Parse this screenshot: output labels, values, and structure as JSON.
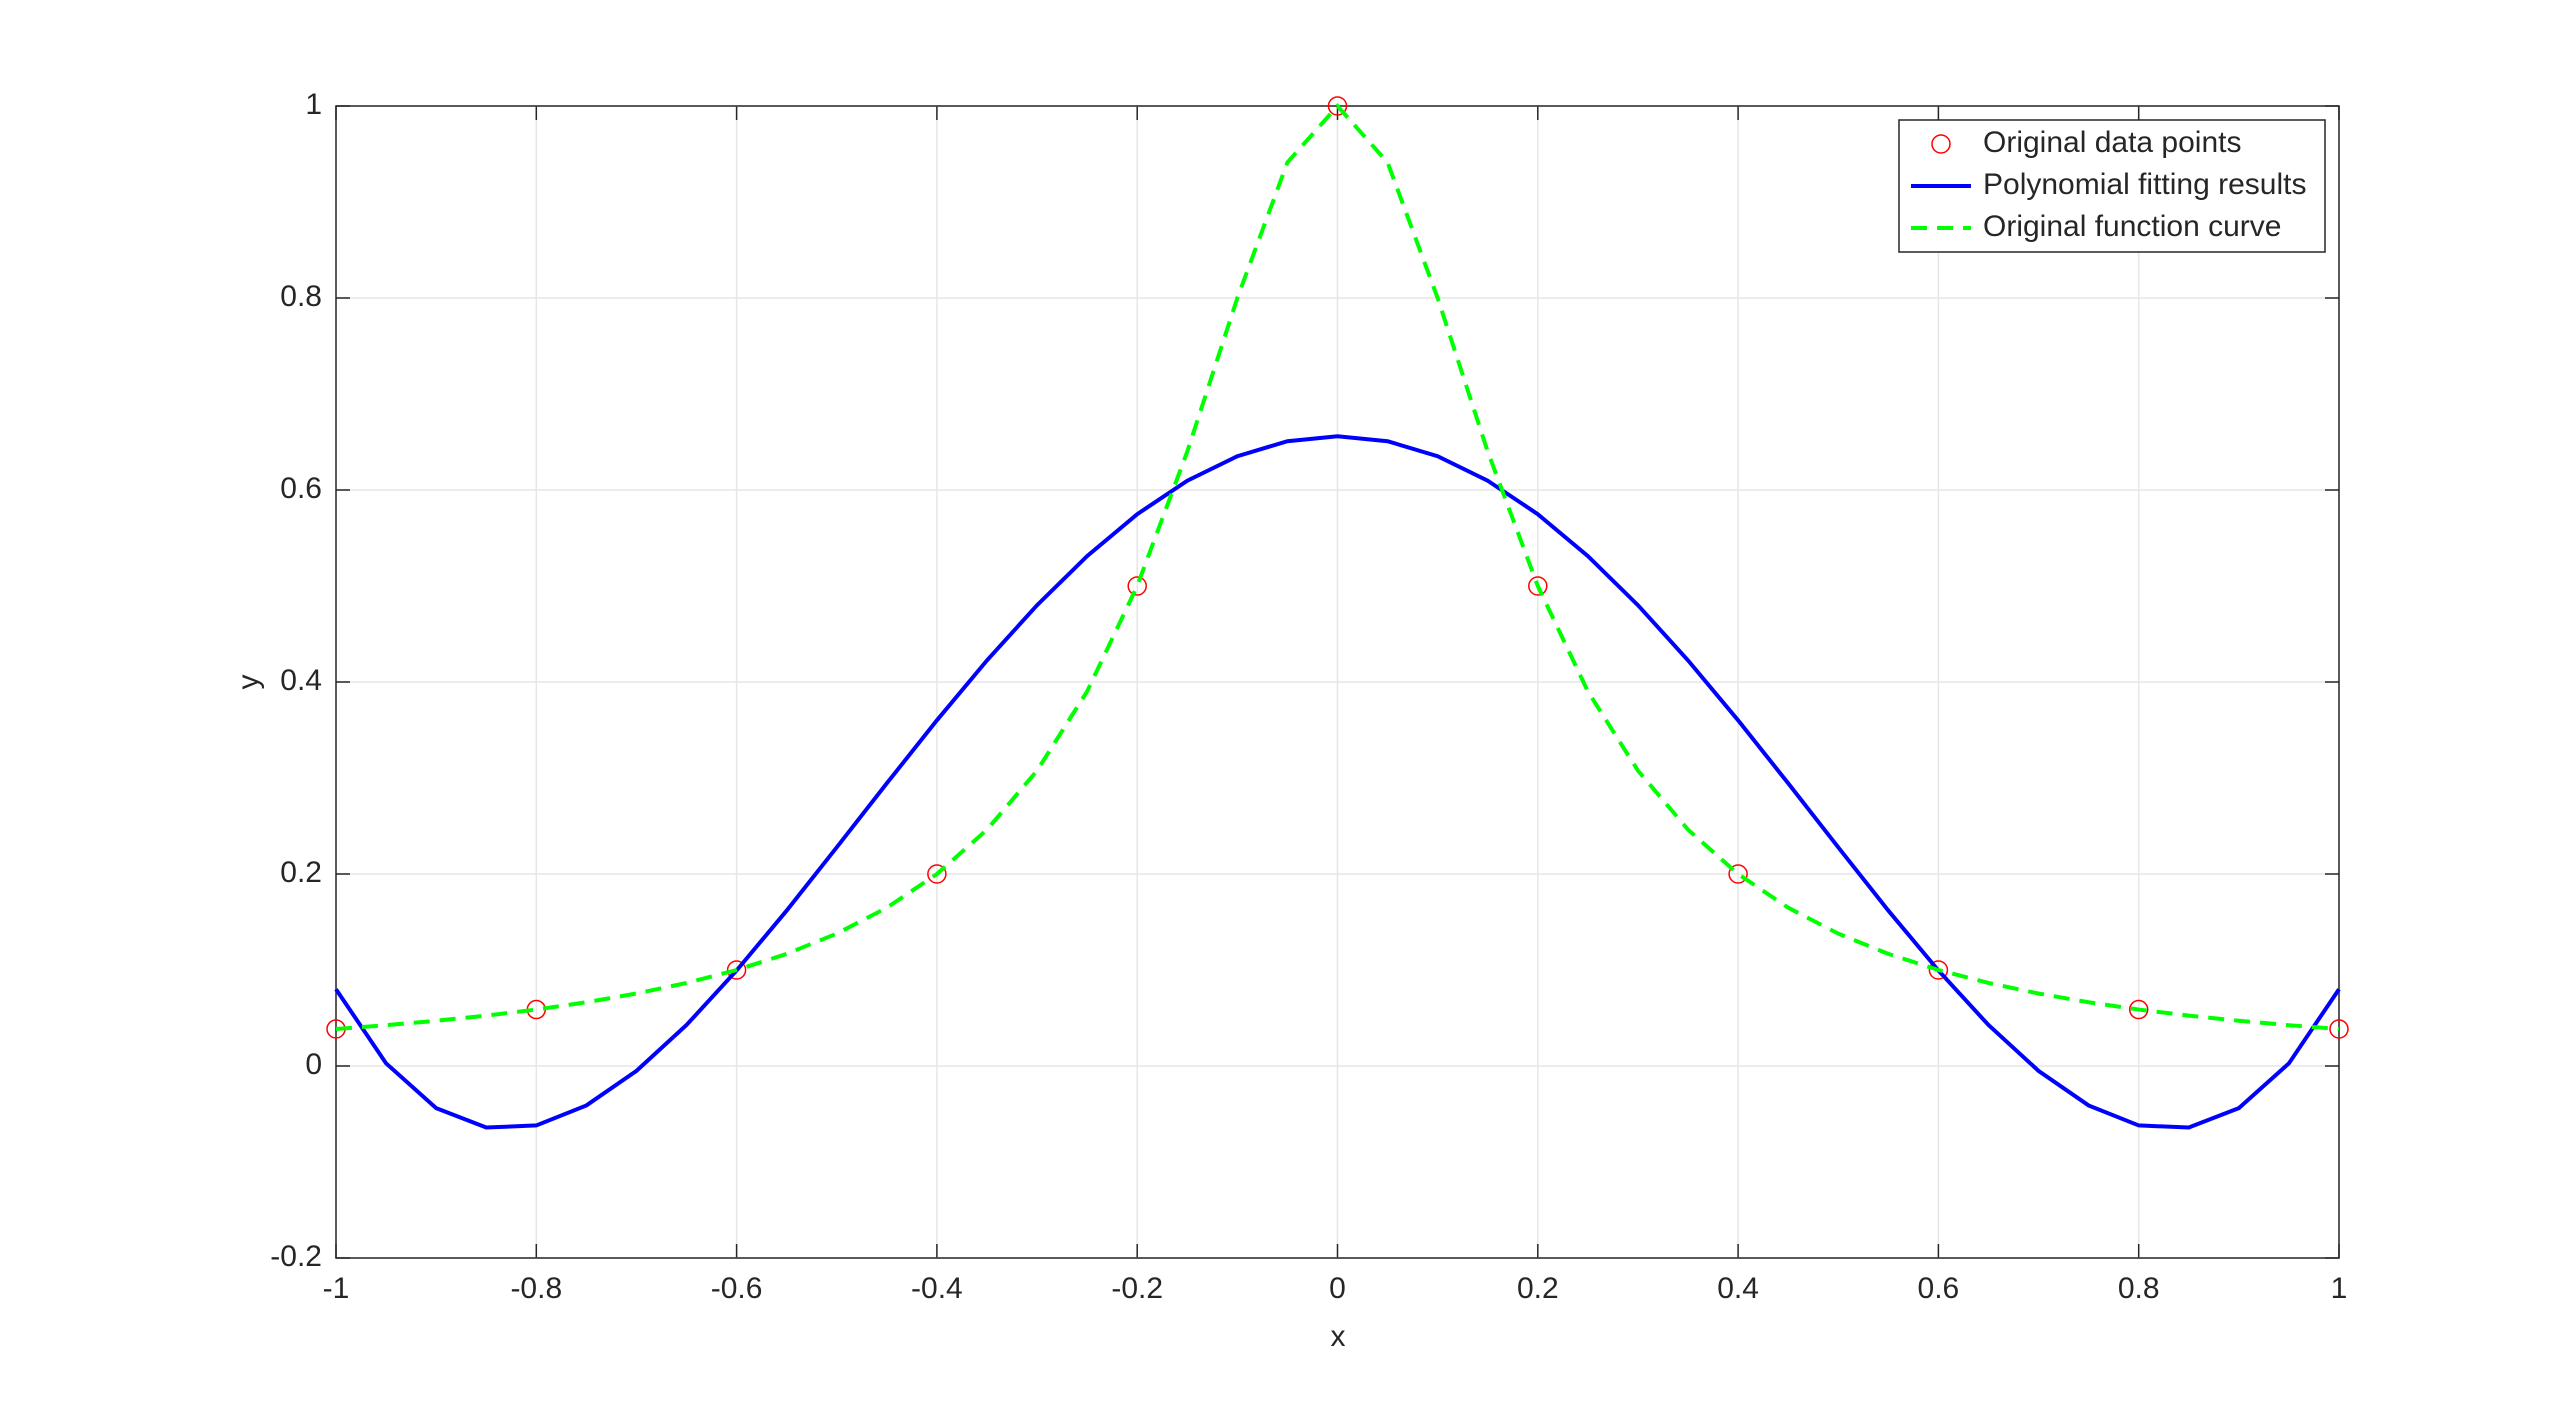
{
  "chart_data": {
    "type": "line",
    "x_label": "x",
    "y_label": "y",
    "xlim": [
      -1,
      1
    ],
    "xticks": [
      -1,
      -0.8,
      -0.6,
      -0.4,
      -0.2,
      0,
      0.2,
      0.4,
      0.6,
      0.8,
      1
    ],
    "ylim": [
      -0.2,
      1
    ],
    "yticks": [
      -0.2,
      0,
      0.2,
      0.4,
      0.6,
      0.8,
      1
    ],
    "grid": true,
    "legend": "upper right",
    "series": [
      {
        "name": "Original data points",
        "type": "scatter",
        "color": "#ff0000",
        "x": [
          -1,
          -0.8,
          -0.6,
          -0.4,
          -0.2,
          0,
          0.2,
          0.4,
          0.6,
          0.8,
          1
        ],
        "values": [
          0.0385,
          0.0588,
          0.1,
          0.2,
          0.5,
          1,
          0.5,
          0.2,
          0.1,
          0.0588,
          0.0385
        ]
      },
      {
        "name": "Polynomial fitting results",
        "type": "line",
        "color": "#0000ff",
        "dash": "solid",
        "x": [
          -1,
          -0.95,
          -0.9,
          -0.85,
          -0.8,
          -0.75,
          -0.7,
          -0.65,
          -0.6,
          -0.55,
          -0.5,
          -0.45,
          -0.4,
          -0.35,
          -0.3,
          -0.25,
          -0.2,
          -0.15,
          -0.1,
          -0.05,
          0,
          0.05,
          0.1,
          0.15,
          0.2,
          0.25,
          0.3,
          0.35,
          0.4,
          0.45,
          0.5,
          0.55,
          0.6,
          0.65,
          0.7,
          0.75,
          0.8,
          0.85,
          0.9,
          0.95,
          1
        ],
        "values": [
          0.08,
          0.0028,
          -0.0439,
          -0.0641,
          -0.0619,
          -0.0411,
          -0.0051,
          0.0427,
          0.0995,
          0.1619,
          0.2278,
          0.2945,
          0.3601,
          0.4225,
          0.48,
          0.5312,
          0.5748,
          0.6097,
          0.6352,
          0.6508,
          0.656,
          0.6508,
          0.6352,
          0.6097,
          0.5748,
          0.5312,
          0.48,
          0.4225,
          0.3601,
          0.2945,
          0.2278,
          0.1619,
          0.0995,
          0.0427,
          -0.0051,
          -0.0411,
          -0.0619,
          -0.0641,
          -0.0439,
          0.0028,
          0.08
        ]
      },
      {
        "name": "Original function curve",
        "type": "line",
        "color": "#00ff00",
        "dash": "dashed",
        "x": [
          -1,
          -0.95,
          -0.9,
          -0.85,
          -0.8,
          -0.75,
          -0.7,
          -0.65,
          -0.6,
          -0.55,
          -0.5,
          -0.45,
          -0.4,
          -0.35,
          -0.3,
          -0.25,
          -0.2,
          -0.15,
          -0.1,
          -0.05,
          0,
          0.05,
          0.1,
          0.15,
          0.2,
          0.25,
          0.3,
          0.35,
          0.4,
          0.45,
          0.5,
          0.55,
          0.6,
          0.65,
          0.7,
          0.75,
          0.8,
          0.85,
          0.9,
          0.95,
          1
        ],
        "values": [
          0.0385,
          0.0425,
          0.0471,
          0.0525,
          0.0588,
          0.0664,
          0.0755,
          0.0865,
          0.1,
          0.1168,
          0.1379,
          0.1649,
          0.2,
          0.2462,
          0.3077,
          0.3902,
          0.5,
          0.64,
          0.8,
          0.9412,
          1,
          0.9412,
          0.8,
          0.64,
          0.5,
          0.3902,
          0.3077,
          0.2462,
          0.2,
          0.1649,
          0.1379,
          0.1168,
          0.1,
          0.0865,
          0.0755,
          0.0664,
          0.0588,
          0.0525,
          0.0471,
          0.0425,
          0.0385
        ]
      }
    ]
  }
}
